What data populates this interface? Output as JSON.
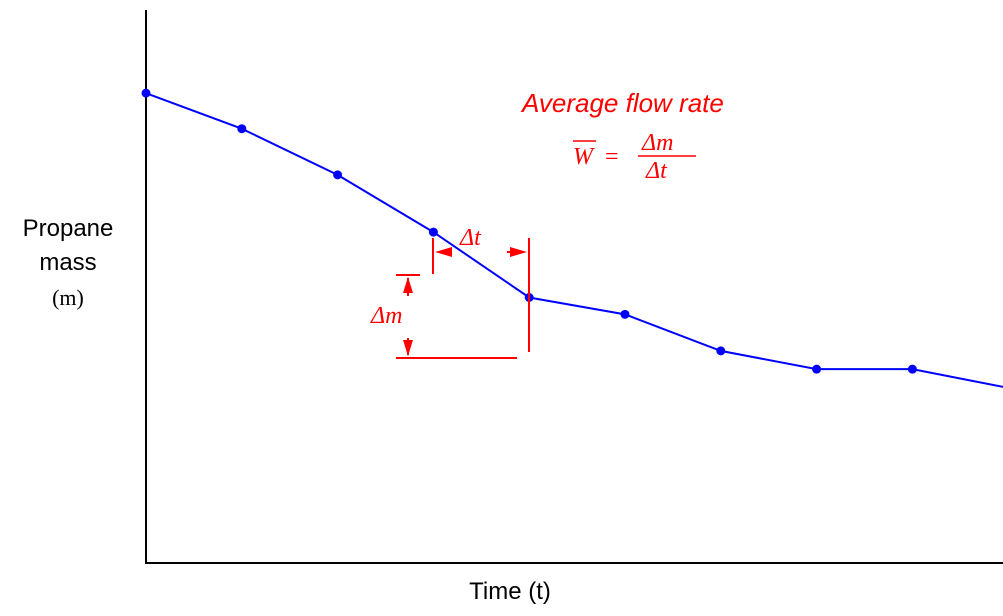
{
  "chart_data": {
    "type": "line",
    "title": "",
    "xlabel": "Time (t)",
    "ylabel": "Propane",
    "ylabel_line2": "mass",
    "ylabel_line3": "(m)",
    "series": [
      {
        "color": "#0000ff",
        "x": [
          0,
          1,
          2,
          3,
          4,
          5,
          6,
          7,
          8,
          9
        ],
        "y": [
          100,
          92.6,
          83.0,
          71.1,
          57.5,
          54.0,
          46.4,
          42.6,
          42.6,
          38.7
        ]
      }
    ],
    "xlim": [
      0,
      9
    ],
    "ylim": [
      0,
      115
    ],
    "grid": false,
    "annotation": {
      "title": "Average flow rate",
      "lhs": "W",
      "equals": "=",
      "numerator": "Δm",
      "denominator": "Δt",
      "delta_t_label": "Δt",
      "delta_m_label": "Δm",
      "color": "#ff0000"
    }
  }
}
